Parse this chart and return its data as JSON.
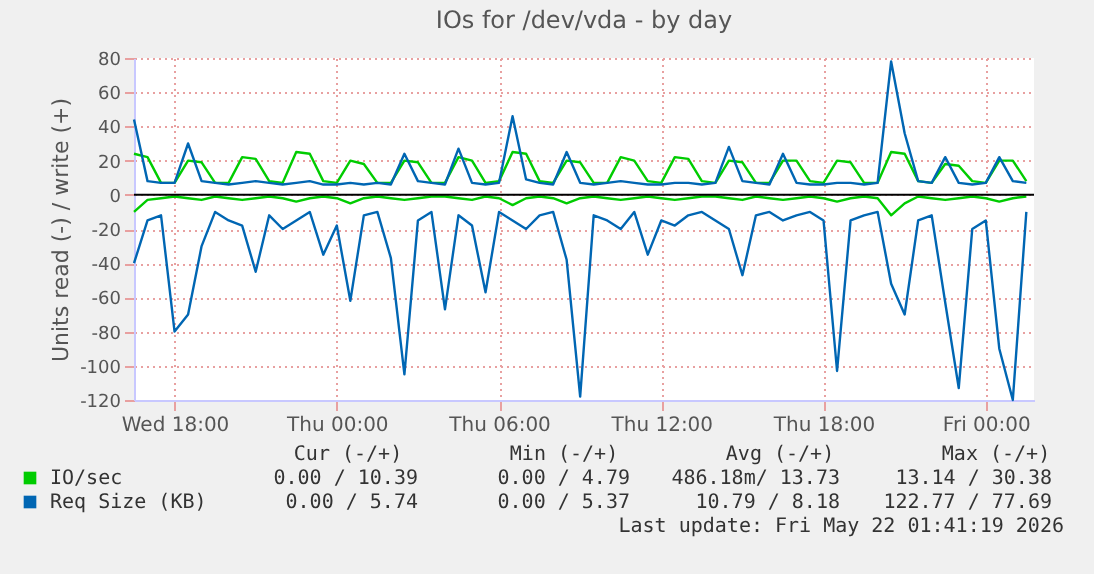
{
  "chart_data": {
    "type": "line",
    "title": "IOs for /dev/vda - by day",
    "ylabel": "Units read (-) / write (+)",
    "x": [
      "2026-05-20T16:30",
      "2026-05-20T17:00",
      "2026-05-20T17:30",
      "2026-05-20T18:00",
      "2026-05-20T18:30",
      "2026-05-20T19:00",
      "2026-05-20T19:30",
      "2026-05-20T20:00",
      "2026-05-20T20:30",
      "2026-05-20T21:00",
      "2026-05-20T21:30",
      "2026-05-20T22:00",
      "2026-05-20T22:30",
      "2026-05-20T23:00",
      "2026-05-20T23:30",
      "2026-05-21T00:00",
      "2026-05-21T00:30",
      "2026-05-21T01:00",
      "2026-05-21T01:30",
      "2026-05-21T02:00",
      "2026-05-21T02:30",
      "2026-05-21T03:00",
      "2026-05-21T03:30",
      "2026-05-21T04:00",
      "2026-05-21T04:30",
      "2026-05-21T05:00",
      "2026-05-21T05:30",
      "2026-05-21T06:00",
      "2026-05-21T06:30",
      "2026-05-21T07:00",
      "2026-05-21T07:30",
      "2026-05-21T08:00",
      "2026-05-21T08:30",
      "2026-05-21T09:00",
      "2026-05-21T09:30",
      "2026-05-21T10:00",
      "2026-05-21T10:30",
      "2026-05-21T11:00",
      "2026-05-21T11:30",
      "2026-05-21T12:00",
      "2026-05-21T12:30",
      "2026-05-21T13:00",
      "2026-05-21T13:30",
      "2026-05-21T14:00",
      "2026-05-21T14:30",
      "2026-05-21T15:00",
      "2026-05-21T15:30",
      "2026-05-21T16:00",
      "2026-05-21T16:30",
      "2026-05-21T17:00",
      "2026-05-21T17:30",
      "2026-05-21T18:00",
      "2026-05-21T18:30",
      "2026-05-21T19:00",
      "2026-05-21T19:30",
      "2026-05-21T20:00",
      "2026-05-21T20:30",
      "2026-05-21T21:00",
      "2026-05-21T21:30",
      "2026-05-21T22:00",
      "2026-05-21T22:30",
      "2026-05-21T23:00",
      "2026-05-21T23:30",
      "2026-05-22T00:00",
      "2026-05-22T00:30",
      "2026-05-22T01:00",
      "2026-05-22T01:30"
    ],
    "series": [
      {
        "name": "IO/sec",
        "color": "#00cc00",
        "values": [
          24,
          22,
          7,
          7,
          20,
          19,
          7,
          7,
          22,
          21,
          8,
          7,
          25,
          24,
          8,
          7,
          20,
          18,
          7,
          7,
          20,
          19,
          7,
          7,
          22,
          20,
          7,
          8,
          25,
          24,
          8,
          7,
          20,
          19,
          7,
          7,
          22,
          20,
          8,
          7,
          22,
          21,
          8,
          7,
          20,
          19,
          7,
          7,
          20,
          20,
          8,
          7,
          20,
          19,
          7,
          7,
          25,
          24,
          8,
          7,
          18,
          17,
          8,
          7,
          20,
          20,
          8
        ]
      },
      {
        "color": "#00cc00",
        "values": [
          -10,
          -3,
          -2,
          -1,
          -2,
          -3,
          -1,
          -2,
          -3,
          -2,
          -1,
          -2,
          -4,
          -2,
          -1,
          -2,
          -5,
          -2,
          -1,
          -2,
          -3,
          -2,
          -1,
          -1,
          -2,
          -3,
          -1,
          -2,
          -6,
          -2,
          -1,
          -2,
          -5,
          -2,
          -1,
          -2,
          -3,
          -2,
          -1,
          -2,
          -3,
          -2,
          -1,
          -1,
          -2,
          -3,
          -1,
          -2,
          -3,
          -2,
          -1,
          -2,
          -4,
          -2,
          -1,
          -2,
          -12,
          -5,
          -1,
          -2,
          -3,
          -2,
          -1,
          -2,
          -4,
          -2,
          -1
        ]
      },
      {
        "name": "Req Size (KB)",
        "color": "#0066b3",
        "values": [
          44,
          8,
          7,
          7,
          30,
          8,
          7,
          6,
          7,
          8,
          7,
          6,
          7,
          8,
          6,
          6,
          7,
          6,
          7,
          6,
          24,
          8,
          7,
          6,
          27,
          7,
          6,
          7,
          46,
          9,
          7,
          6,
          25,
          7,
          6,
          7,
          8,
          7,
          6,
          6,
          7,
          7,
          6,
          7,
          28,
          8,
          7,
          6,
          24,
          7,
          6,
          6,
          7,
          7,
          6,
          7,
          78,
          36,
          8,
          7,
          22,
          7,
          6,
          7,
          22,
          8,
          7
        ]
      },
      {
        "color": "#0066b3",
        "values": [
          -40,
          -15,
          -12,
          -80,
          -70,
          -30,
          -10,
          -15,
          -18,
          -45,
          -12,
          -20,
          -15,
          -10,
          -35,
          -18,
          -62,
          -12,
          -10,
          -37,
          -105,
          -15,
          -10,
          -67,
          -12,
          -18,
          -57,
          -10,
          -15,
          -20,
          -12,
          -10,
          -38,
          -118,
          -12,
          -15,
          -20,
          -10,
          -35,
          -15,
          -18,
          -12,
          -10,
          -15,
          -20,
          -47,
          -12,
          -10,
          -15,
          -12,
          -10,
          -15,
          -103,
          -15,
          -12,
          -10,
          -52,
          -70,
          -15,
          -12,
          -63,
          -113,
          -20,
          -15,
          -90,
          -120,
          -10
        ]
      }
    ],
    "xlim": [
      "2026-05-20T16:30",
      "2026-05-22T01:47"
    ],
    "xticks": [
      {
        "value": "2026-05-20T18:00",
        "label": "Wed 18:00"
      },
      {
        "value": "2026-05-21T00:00",
        "label": "Thu 00:00"
      },
      {
        "value": "2026-05-21T06:00",
        "label": "Thu 06:00"
      },
      {
        "value": "2026-05-21T12:00",
        "label": "Thu 12:00"
      },
      {
        "value": "2026-05-21T18:00",
        "label": "Thu 18:00"
      },
      {
        "value": "2026-05-22T00:00",
        "label": "Fri 00:00"
      }
    ],
    "ylim": [
      -120,
      80
    ],
    "yticks": [
      -120,
      -100,
      -80,
      -60,
      -40,
      -20,
      0,
      20,
      40,
      60,
      80
    ],
    "grid": true,
    "legend": "bottom",
    "line_style": "solid",
    "marker": "none",
    "ref_lines": [
      {
        "axis": "y",
        "value": 0,
        "color": "#000000"
      }
    ],
    "annotations": [
      "Cur (-/+)",
      "Min (-/+)",
      "Avg (-/+)",
      "Max (-/+)",
      "0.00 / 10.39",
      "0.00 /  4.79",
      "486.18m/ 13.73",
      "13.14 / 30.38",
      "0.00 /  5.74",
      "0.00 /  5.37",
      "10.79 /  8.18",
      "122.77 / 77.69",
      "Last update: Fri May 22 01:41:19 2026"
    ]
  }
}
